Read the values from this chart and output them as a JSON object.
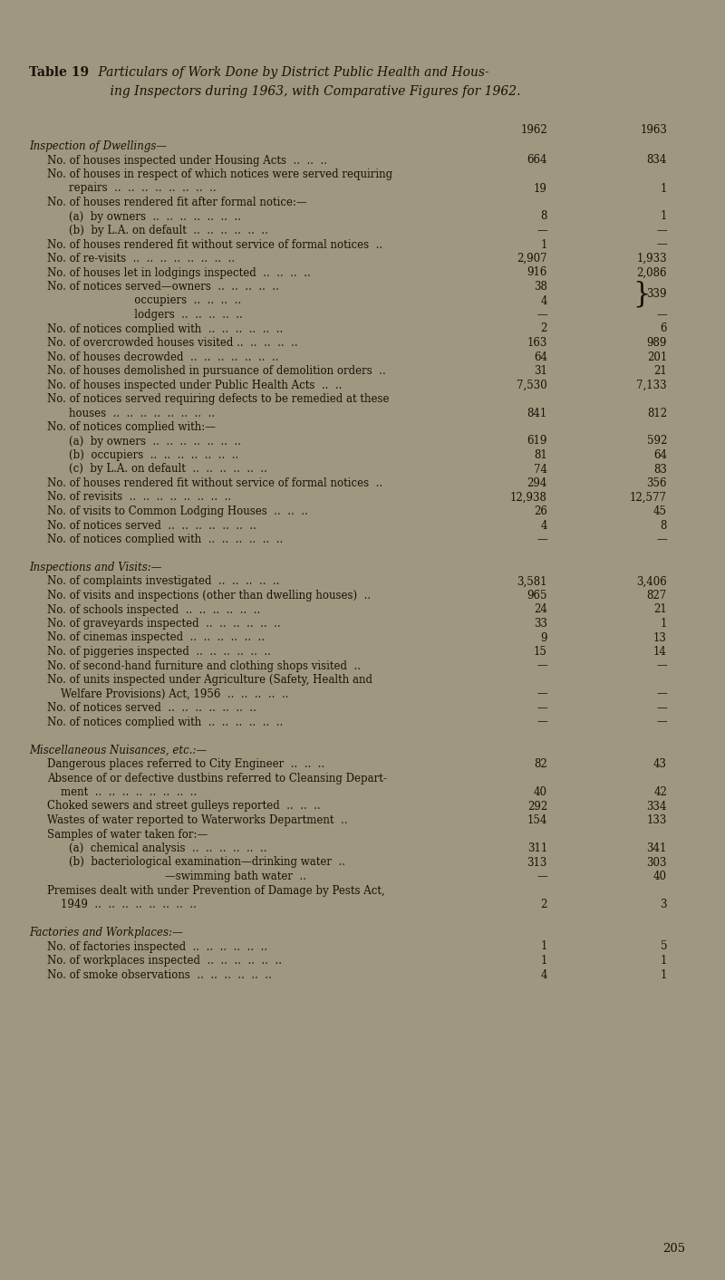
{
  "bg_color": "#9e9880",
  "text_color": "#1a1005",
  "title_bold": "Table 19",
  "title_italic_line1": " Particulars of Work Done by District Public Health and Hous-",
  "title_italic_line2": "    ing Inspectors during 1963, with Comparative Figures for 1962.",
  "footer": "205",
  "col62_label": "1962",
  "col63_label": "1963",
  "rows": [
    {
      "label": "Inspection of Dwellings—",
      "v62": "",
      "v63": "",
      "ind": 0,
      "sec": true
    },
    {
      "label": "No. of houses inspected under Housing Acts  ..  ..  ..",
      "v62": "664",
      "v63": "834",
      "ind": 1
    },
    {
      "label": "No. of houses in respect of which notices were served requiring",
      "v62": "",
      "v63": "",
      "ind": 1
    },
    {
      "label": "repairs  ..  ..  ..  ..  ..  ..  ..  ..",
      "v62": "19",
      "v63": "1",
      "ind": 2
    },
    {
      "label": "No. of houses rendered fit after formal notice:—",
      "v62": "",
      "v63": "",
      "ind": 1
    },
    {
      "label": "(a)  by owners  ..  ..  ..  ..  ..  ..  ..",
      "v62": "8",
      "v63": "1",
      "ind": 2
    },
    {
      "label": "(b)  by L.A. on default  ..  ..  ..  ..  ..  ..",
      "v62": "—",
      "v63": "—",
      "ind": 2
    },
    {
      "label": "No. of houses rendered fit without service of formal notices  ..",
      "v62": "1",
      "v63": "—",
      "ind": 1
    },
    {
      "label": "No. of re-visits  ..  ..  ..  ..  ..  ..  ..  ..",
      "v62": "2,907",
      "v63": "1,933",
      "ind": 1
    },
    {
      "label": "No. of houses let in lodgings inspected  ..  ..  ..  ..",
      "v62": "916",
      "v63": "2,086",
      "ind": 1
    },
    {
      "label": "No. of notices served—owners  ..  ..  ..  ..  ..",
      "v62": "38",
      "v63": "",
      "ind": 1,
      "brace_top": true,
      "brace_val": "339"
    },
    {
      "label": "                               occupiers  ..  ..  ..  ..",
      "v62": "4",
      "v63": "",
      "ind": 0,
      "brace_bot": true
    },
    {
      "label": "                               lodgers  ..  ..  ..  ..  ..",
      "v62": "—",
      "v63": "—",
      "ind": 0
    },
    {
      "label": "No. of notices complied with  ..  ..  ..  ..  ..  ..",
      "v62": "2",
      "v63": "6",
      "ind": 1
    },
    {
      "label": "No. of overcrowded houses visited ..  ..  ..  ..  ..",
      "v62": "163",
      "v63": "989",
      "ind": 1
    },
    {
      "label": "No. of houses decrowded  ..  ..  ..  ..  ..  ..  ..",
      "v62": "64",
      "v63": "201",
      "ind": 1
    },
    {
      "label": "No. of houses demolished in pursuance of demolition orders  ..",
      "v62": "31",
      "v63": "21",
      "ind": 1
    },
    {
      "label": "No. of houses inspected under Public Health Acts  ..  ..",
      "v62": "7,530",
      "v63": "7,133",
      "ind": 1
    },
    {
      "label": "No. of notices served requiring defects to be remedied at these",
      "v62": "",
      "v63": "",
      "ind": 1
    },
    {
      "label": "houses  ..  ..  ..  ..  ..  ..  ..  ..",
      "v62": "841",
      "v63": "812",
      "ind": 2
    },
    {
      "label": "No. of notices complied with:—",
      "v62": "",
      "v63": "",
      "ind": 1
    },
    {
      "label": "(a)  by owners  ..  ..  ..  ..  ..  ..  ..",
      "v62": "619",
      "v63": "592",
      "ind": 2
    },
    {
      "label": "(b)  occupiers  ..  ..  ..  ..  ..  ..  ..",
      "v62": "81",
      "v63": "64",
      "ind": 2
    },
    {
      "label": "(c)  by L.A. on default  ..  ..  ..  ..  ..  ..",
      "v62": "74",
      "v63": "83",
      "ind": 2
    },
    {
      "label": "No. of houses rendered fit without service of formal notices  ..",
      "v62": "294",
      "v63": "356",
      "ind": 1
    },
    {
      "label": "No. of revisits  ..  ..  ..  ..  ..  ..  ..  ..",
      "v62": "12,938",
      "v63": "12,577",
      "ind": 1
    },
    {
      "label": "No. of visits to Common Lodging Houses  ..  ..  ..",
      "v62": "26",
      "v63": "45",
      "ind": 1
    },
    {
      "label": "No. of notices served  ..  ..  ..  ..  ..  ..  ..",
      "v62": "4",
      "v63": "8",
      "ind": 1
    },
    {
      "label": "No. of notices complied with  ..  ..  ..  ..  ..  ..",
      "v62": "—",
      "v63": "—",
      "ind": 1
    },
    {
      "label": "",
      "v62": "",
      "v63": "",
      "ind": 0
    },
    {
      "label": "Inspections and Visits:—",
      "v62": "",
      "v63": "",
      "ind": 0,
      "sec": true
    },
    {
      "label": "No. of complaints investigated  ..  ..  ..  ..  ..",
      "v62": "3,581",
      "v63": "3,406",
      "ind": 1
    },
    {
      "label": "No. of visits and inspections (other than dwelling houses)  ..",
      "v62": "965",
      "v63": "827",
      "ind": 1
    },
    {
      "label": "No. of schools inspected  ..  ..  ..  ..  ..  ..",
      "v62": "24",
      "v63": "21",
      "ind": 1
    },
    {
      "label": "No. of graveyards inspected  ..  ..  ..  ..  ..  ..",
      "v62": "33",
      "v63": "1",
      "ind": 1
    },
    {
      "label": "No. of cinemas inspected  ..  ..  ..  ..  ..  ..",
      "v62": "9",
      "v63": "13",
      "ind": 1
    },
    {
      "label": "No. of piggeries inspected  ..  ..  ..  ..  ..  ..",
      "v62": "15",
      "v63": "14",
      "ind": 1
    },
    {
      "label": "No. of second-hand furniture and clothing shops visited  ..",
      "v62": "—",
      "v63": "—",
      "ind": 1
    },
    {
      "label": "No. of units inspected under Agriculture (Safety, Health and",
      "v62": "",
      "v63": "",
      "ind": 1
    },
    {
      "label": "    Welfare Provisions) Act, 1956  ..  ..  ..  ..  ..",
      "v62": "—",
      "v63": "—",
      "ind": 1
    },
    {
      "label": "No. of notices served  ..  ..  ..  ..  ..  ..  ..",
      "v62": "—",
      "v63": "—",
      "ind": 1
    },
    {
      "label": "No. of notices complied with  ..  ..  ..  ..  ..  ..",
      "v62": "—",
      "v63": "—",
      "ind": 1
    },
    {
      "label": "",
      "v62": "",
      "v63": "",
      "ind": 0
    },
    {
      "label": "Miscellaneous Nuisances, etc.:—",
      "v62": "",
      "v63": "",
      "ind": 0,
      "sec": true
    },
    {
      "label": "Dangerous places referred to City Engineer  ..  ..  ..",
      "v62": "82",
      "v63": "43",
      "ind": 1
    },
    {
      "label": "Absence of or defective dustbins referred to Cleansing Depart-",
      "v62": "",
      "v63": "",
      "ind": 1
    },
    {
      "label": "    ment  ..  ..  ..  ..  ..  ..  ..  ..",
      "v62": "40",
      "v63": "42",
      "ind": 1
    },
    {
      "label": "Choked sewers and street gulleys reported  ..  ..  ..",
      "v62": "292",
      "v63": "334",
      "ind": 1
    },
    {
      "label": "Wastes of water reported to Waterworks Department  ..",
      "v62": "154",
      "v63": "133",
      "ind": 1
    },
    {
      "label": "Samples of water taken for:—",
      "v62": "",
      "v63": "",
      "ind": 1
    },
    {
      "label": "(a)  chemical analysis  ..  ..  ..  ..  ..  ..",
      "v62": "311",
      "v63": "341",
      "ind": 2
    },
    {
      "label": "(b)  bacteriological examination—drinking water  ..",
      "v62": "313",
      "v63": "303",
      "ind": 2
    },
    {
      "label": "                                        —swimming bath water  ..",
      "v62": "—",
      "v63": "40",
      "ind": 0
    },
    {
      "label": "Premises dealt with under Prevention of Damage by Pests Act,",
      "v62": "",
      "v63": "",
      "ind": 1
    },
    {
      "label": "    1949  ..  ..  ..  ..  ..  ..  ..  ..",
      "v62": "2",
      "v63": "3",
      "ind": 1
    },
    {
      "label": "",
      "v62": "",
      "v63": "",
      "ind": 0
    },
    {
      "label": "Factories and Workplaces:—",
      "v62": "",
      "v63": "",
      "ind": 0,
      "sec": true
    },
    {
      "label": "No. of factories inspected  ..  ..  ..  ..  ..  ..",
      "v62": "1",
      "v63": "5",
      "ind": 1
    },
    {
      "label": "No. of workplaces inspected  ..  ..  ..  ..  ..  ..",
      "v62": "1",
      "v63": "1",
      "ind": 1
    },
    {
      "label": "No. of smoke observations  ..  ..  ..  ..  ..  ..",
      "v62": "4",
      "v63": "1",
      "ind": 1
    }
  ]
}
